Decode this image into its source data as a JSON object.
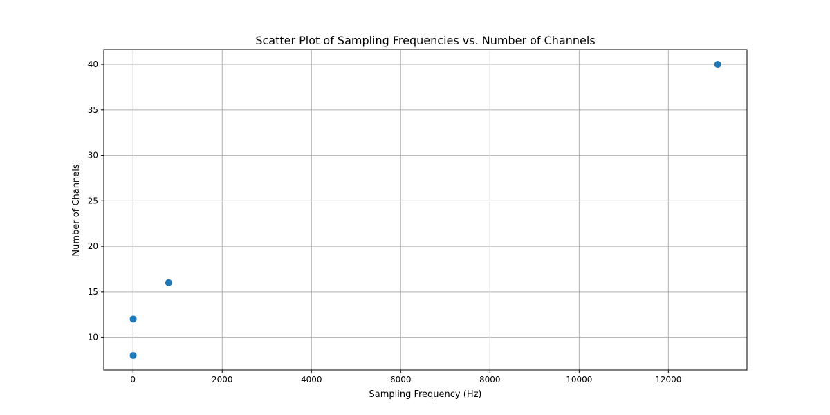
{
  "chart_data": {
    "type": "scatter",
    "title": "Scatter Plot of Sampling Frequencies vs. Number of Channels",
    "xlabel": "Sampling Frequency (Hz)",
    "ylabel": "Number of Channels",
    "xlim": [
      -655,
      13762
    ],
    "ylim": [
      6.4,
      41.6
    ],
    "xticks": [
      0,
      2000,
      4000,
      6000,
      8000,
      10000,
      12000
    ],
    "yticks": [
      10,
      15,
      20,
      25,
      30,
      35,
      40
    ],
    "grid": true,
    "marker_color": "#1f77b4",
    "points": [
      {
        "x": 13107,
        "y": 40
      },
      {
        "x": 800,
        "y": 16
      },
      {
        "x": 5,
        "y": 12
      },
      {
        "x": 5,
        "y": 8
      }
    ]
  }
}
